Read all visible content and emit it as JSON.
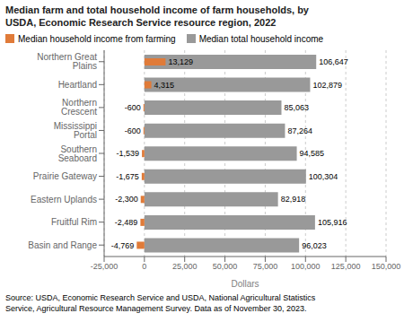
{
  "chart_data": {
    "type": "bar",
    "orientation": "horizontal",
    "title": "Median farm and total household income of farm households, by\nUSDA, Economic Research Service resource region, 2022",
    "categories": [
      "Northern Great Plains",
      "Heartland",
      "Northern Crescent",
      "Mississippi Portal",
      "Southern Seaboard",
      "Prairie Gateway",
      "Eastern Uplands",
      "Fruitful Rim",
      "Basin and Range"
    ],
    "series": [
      {
        "name": "Median household income from farming",
        "color": "#e07b39",
        "values": [
          13129,
          4315,
          -600,
          -600,
          -1539,
          -1675,
          -2300,
          -2489,
          -4769
        ],
        "value_labels": [
          "13,129",
          "4,315",
          "-600",
          "-600",
          "-1,539",
          "-1,675",
          "-2,300",
          "-2,489",
          "-4,769"
        ]
      },
      {
        "name": "Median total household income",
        "color": "#999999",
        "values": [
          106647,
          102879,
          85063,
          87264,
          94585,
          100304,
          82918,
          105916,
          96023
        ],
        "value_labels": [
          "106,647",
          "102,879",
          "85,063",
          "87,264",
          "94,585",
          "100,304",
          "82,918",
          "105,916",
          "96,023"
        ]
      }
    ],
    "x_label": "Dollars",
    "xlim": [
      -25000,
      150000
    ],
    "xticks": [
      {
        "value": -25000,
        "label": "-25,000"
      },
      0,
      {
        "value": 25000,
        "label": "25,000"
      },
      {
        "value": 50000,
        "label": "50,000"
      },
      {
        "value": 75000,
        "label": "75,000"
      },
      {
        "value": 100000,
        "label": "100,000"
      },
      {
        "value": 125000,
        "label": "125,000"
      },
      {
        "value": 150000,
        "label": "150,000"
      }
    ],
    "grid": true,
    "legend": "top",
    "data_labels": true,
    "annotations": [
      "Source: USDA, Economic Research Service and USDA, National Agricultural Statistics\nService, Agricultural Resource Management Survey. Data as of November 30, 2023."
    ]
  }
}
